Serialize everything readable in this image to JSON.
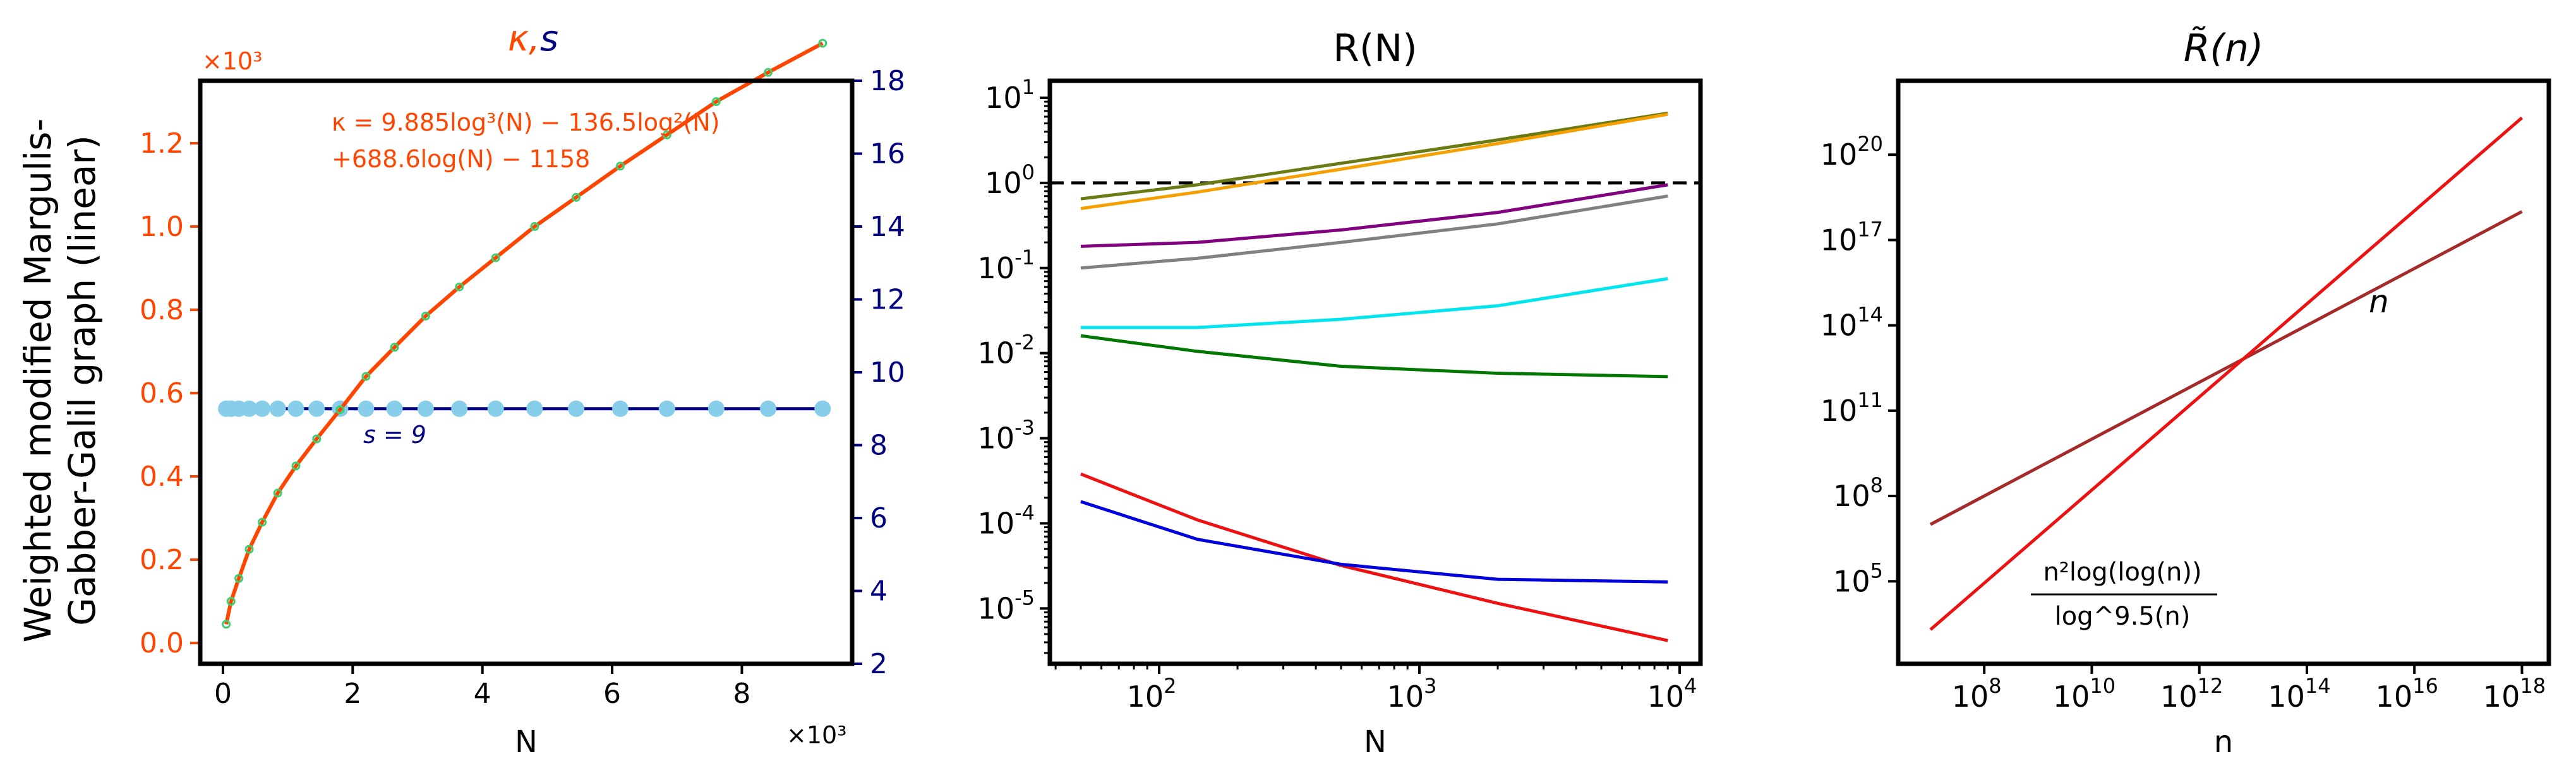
{
  "chart_data": [
    {
      "type": "line",
      "title": "κ,s",
      "title_parts": [
        {
          "text": "κ",
          "color": "#ff4500"
        },
        {
          "text": ",",
          "color": "#ff4500"
        },
        {
          "text": "s",
          "color": "#000080"
        }
      ],
      "xlabel": "N",
      "x_multiplier": "×10³",
      "ylabel_lines": [
        "Weighted modified Margulis-",
        "Gabber-Galil graph (linear)"
      ],
      "y_left_multiplier": "×10³",
      "xlim": [
        -0.35,
        9.7
      ],
      "ylim_left": [
        -0.05,
        1.35
      ],
      "ylim_right": [
        2,
        18
      ],
      "xticks": [
        0,
        2,
        4,
        6,
        8
      ],
      "xtick_labels": [
        "0",
        "2",
        "4",
        "6",
        "8"
      ],
      "yticks_left": [
        0.0,
        0.2,
        0.4,
        0.6,
        0.8,
        1.0,
        1.2
      ],
      "ytick_labels_left": [
        "0.0",
        "0.2",
        "0.4",
        "0.6",
        "0.8",
        "1.0",
        "1.2"
      ],
      "yticks_right": [
        2,
        4,
        6,
        8,
        10,
        12,
        14,
        16,
        18
      ],
      "ytick_labels_right": [
        "2",
        "4",
        "6",
        "8",
        "10",
        "12",
        "14",
        "16",
        "18"
      ],
      "fit_formula_lines": [
        "κ = 9.885log³(N) − 136.5log²(N)",
        "+688.6log(N) − 1158"
      ],
      "s_annotation": "s = 9",
      "kappa_points_x": [
        0.05,
        0.125,
        0.245,
        0.405,
        0.605,
        0.845,
        1.125,
        1.445,
        1.805,
        2.205,
        2.645,
        3.125,
        3.645,
        4.205,
        4.805,
        5.445,
        6.125,
        6.845,
        7.605,
        8.405,
        9.245
      ],
      "kappa_points_y": [
        0.045,
        0.1,
        0.155,
        0.225,
        0.29,
        0.36,
        0.425,
        0.49,
        0.56,
        0.64,
        0.71,
        0.785,
        0.855,
        0.925,
        1.0,
        1.07,
        1.145,
        1.22,
        1.3,
        1.37,
        1.44
      ],
      "s_points_x": [
        0.05,
        0.125,
        0.245,
        0.405,
        0.605,
        0.845,
        1.125,
        1.445,
        1.805,
        2.205,
        2.645,
        3.125,
        3.645,
        4.205,
        4.805,
        5.445,
        6.125,
        6.845,
        7.605,
        8.405,
        9.245
      ],
      "s_value": 9,
      "colors": {
        "kappa_fit": "#ff4500",
        "kappa_points": "#3cd070",
        "s_line": "#000080",
        "s_points": "#87ceeb",
        "left_axis": "#ff4500",
        "right_axis": "#000080"
      }
    },
    {
      "type": "line",
      "title": "R(N)",
      "xlabel": "N",
      "xscale": "log",
      "yscale": "log",
      "xlim_log10": [
        1.58,
        4.08
      ],
      "ylim_log10": [
        -5.65,
        1.2
      ],
      "xticks_log10": [
        2,
        3,
        4
      ],
      "xtick_bases": [
        "10",
        "10",
        "10"
      ],
      "xtick_exps": [
        "2",
        "3",
        "4"
      ],
      "yticks_log10": [
        1,
        0,
        -1,
        -2,
        -3,
        -4,
        -5
      ],
      "ytick_bases": [
        "10",
        "10",
        "10",
        "10",
        "10",
        "10",
        "10"
      ],
      "ytick_exps": [
        "1",
        "0",
        "-1",
        "-2",
        "-3",
        "-4",
        "-5"
      ],
      "reference_line": {
        "y": 1,
        "style": "dashed",
        "color": "#000000"
      },
      "x": [
        50,
        140,
        500,
        2000,
        9000
      ],
      "series": [
        {
          "name": "olive",
          "color": "#6b7a12",
          "values": [
            0.65,
            0.95,
            1.7,
            3.2,
            6.6
          ]
        },
        {
          "name": "orange",
          "color": "#f5a000",
          "values": [
            0.5,
            0.78,
            1.45,
            2.9,
            6.4
          ]
        },
        {
          "name": "purple",
          "color": "#800080",
          "values": [
            0.18,
            0.2,
            0.28,
            0.45,
            0.95
          ]
        },
        {
          "name": "gray",
          "color": "#808080",
          "values": [
            0.1,
            0.13,
            0.2,
            0.33,
            0.7
          ]
        },
        {
          "name": "cyan",
          "color": "#00e5ee",
          "values": [
            0.02,
            0.02,
            0.025,
            0.036,
            0.075
          ]
        },
        {
          "name": "green",
          "color": "#007700",
          "values": [
            0.016,
            0.0105,
            0.007,
            0.0058,
            0.0053
          ]
        },
        {
          "name": "red",
          "color": "#ee1111",
          "values": [
            0.00038,
            0.00011,
            3.2e-05,
            1.15e-05,
            4.2e-06
          ]
        },
        {
          "name": "blue",
          "color": "#0000dd",
          "values": [
            0.00018,
            6.5e-05,
            3.3e-05,
            2.2e-05,
            2.05e-05
          ]
        }
      ]
    },
    {
      "type": "line",
      "title": "R̃(n)",
      "xlabel": "n",
      "xscale": "log",
      "yscale": "log",
      "xlim_log10": [
        6.4,
        18.5
      ],
      "ylim_log10": [
        2.1,
        22.6
      ],
      "xticks_log10": [
        8,
        10,
        12,
        14,
        16,
        18
      ],
      "xtick_bases": [
        "10",
        "10",
        "10",
        "10",
        "10",
        "10"
      ],
      "xtick_exps": [
        "8",
        "10",
        "12",
        "14",
        "16",
        "18"
      ],
      "yticks_log10": [
        20,
        17,
        14,
        11,
        8,
        5
      ],
      "ytick_bases": [
        "10",
        "10",
        "10",
        "10",
        "10",
        "10"
      ],
      "ytick_exps": [
        "20",
        "17",
        "14",
        "11",
        "8",
        "5"
      ],
      "series": [
        {
          "name": "n",
          "color": "#a52a2a",
          "x_log10": [
            7,
            18
          ],
          "y_log10": [
            7,
            18
          ]
        },
        {
          "name": "n²log(log(n))/log^9.5(n)",
          "color": "#ee1111",
          "x_log10": [
            7,
            18
          ],
          "y_log10": [
            3.3,
            21.3
          ]
        }
      ],
      "label_n": "n",
      "formula_num": "n²log(log(n))",
      "formula_den": "log^9.5(n)"
    }
  ]
}
